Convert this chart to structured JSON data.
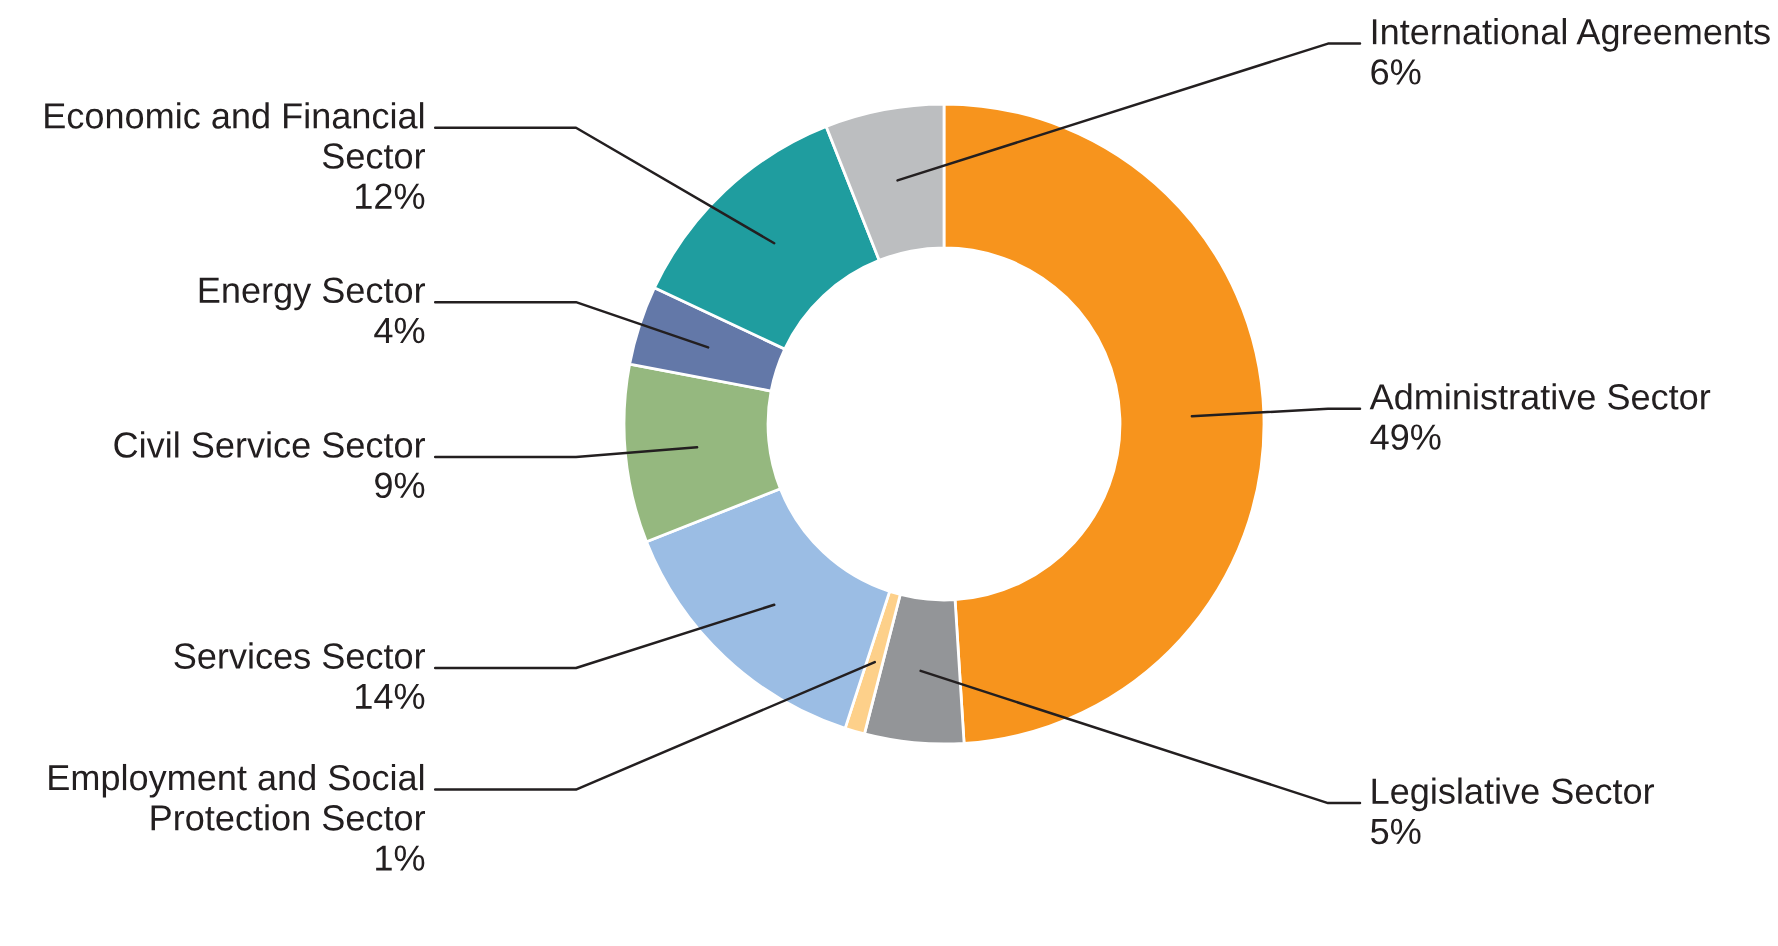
{
  "chart_data": {
    "type": "donut",
    "categories": [
      "Administrative Sector",
      "Legislative Sector",
      "Employment and Social\nProtection Sector",
      "Services Sector",
      "Civil Service Sector",
      "Energy Sector",
      "Economic and Financial\nSector",
      "International Agreements"
    ],
    "values": [
      49,
      5,
      1,
      14,
      9,
      4,
      12,
      6
    ],
    "value_labels": [
      "49%",
      "5%",
      "1%",
      "14%",
      "9%",
      "4%",
      "12%",
      "6%"
    ],
    "colors": [
      "#f7941d",
      "#939598",
      "#fdd08a",
      "#9bbde4",
      "#95b87f",
      "#6378a8",
      "#1f9d9f",
      "#bcbec0"
    ],
    "legend": false
  }
}
